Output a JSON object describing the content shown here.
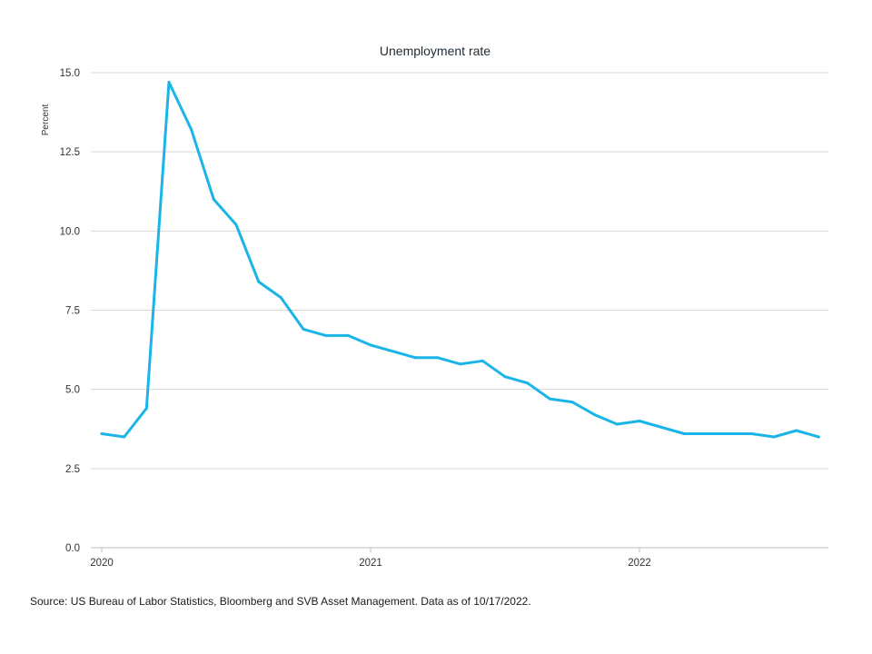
{
  "chart_data": {
    "type": "line",
    "title": "Unemployment rate",
    "ylabel": "Percent",
    "xlabel": "",
    "ylim": [
      0,
      15
    ],
    "yticks": [
      "0.0",
      "2.5",
      "5.0",
      "7.5",
      "10.0",
      "12.5",
      "15.0"
    ],
    "xticks": [
      "2020",
      "2021",
      "2022"
    ],
    "grid": true,
    "colors": {
      "line": "#1ab5e6",
      "grid": "#d9d9d9"
    },
    "series": [
      {
        "x": [
          "2020-01",
          "2020-02",
          "2020-03",
          "2020-04",
          "2020-05",
          "2020-06",
          "2020-07",
          "2020-08",
          "2020-09",
          "2020-10",
          "2020-11",
          "2020-12",
          "2021-01",
          "2021-02",
          "2021-03",
          "2021-04",
          "2021-05",
          "2021-06",
          "2021-07",
          "2021-08",
          "2021-09",
          "2021-10",
          "2021-11",
          "2021-12",
          "2022-01",
          "2022-02",
          "2022-03",
          "2022-04",
          "2022-05",
          "2022-06",
          "2022-07",
          "2022-08",
          "2022-09"
        ],
        "values": [
          3.6,
          3.5,
          4.4,
          14.7,
          13.2,
          11.0,
          10.2,
          8.4,
          7.9,
          6.9,
          6.7,
          6.7,
          6.4,
          6.2,
          6.0,
          6.0,
          5.8,
          5.9,
          5.4,
          5.2,
          4.7,
          4.6,
          4.2,
          3.9,
          4.0,
          3.8,
          3.6,
          3.6,
          3.6,
          3.6,
          3.5,
          3.7,
          3.5
        ]
      }
    ]
  },
  "source": "Source: US Bureau of Labor Statistics, Bloomberg and SVB Asset Management. Data as of 10/17/2022."
}
